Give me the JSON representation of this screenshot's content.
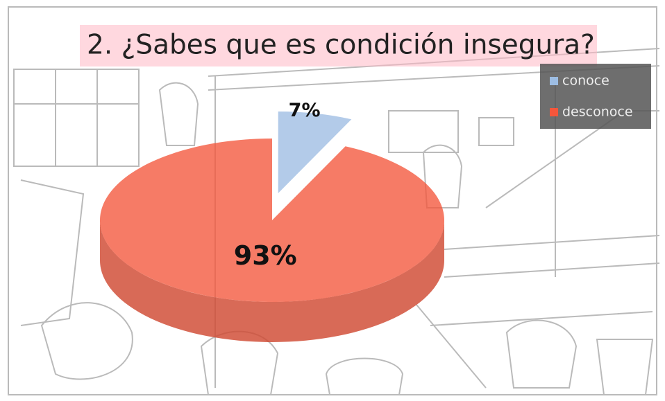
{
  "chart_data": {
    "type": "pie",
    "title": "2. ¿Sabes que es condición insegura?",
    "categories": [
      "conoce",
      "desconoce"
    ],
    "series": [
      {
        "name": "valores",
        "values": [
          7,
          93
        ],
        "value_labels": [
          "7%",
          "93%"
        ],
        "colors": [
          "#9dbde3",
          "#f4563b"
        ]
      }
    ],
    "legend": "top-right"
  }
}
